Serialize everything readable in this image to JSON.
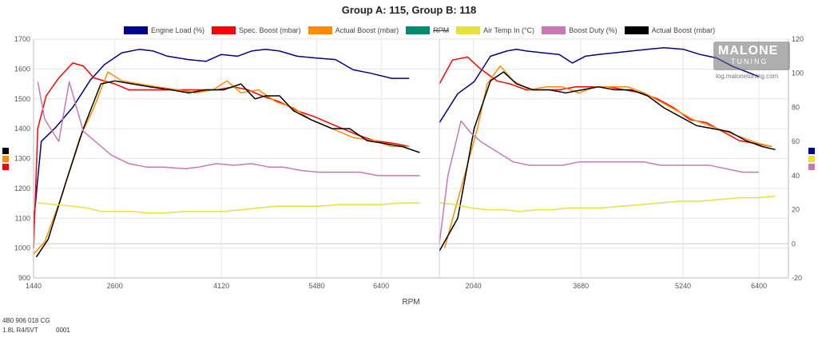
{
  "title": "Group A: 115, Group B: 118",
  "footer": {
    "line1": "4B0 906 018 CG",
    "line2": "1.8L R4/5VT",
    "line3": "0001"
  },
  "watermark": {
    "main": "MALONE",
    "sub": "TUNING",
    "url": "log.malonetuning.com"
  },
  "chart_data": {
    "type": "line",
    "title": "Group A: 115, Group B: 118",
    "xlabel": "RPM",
    "ylabel_left": "",
    "ylabel_right": "",
    "y_left_range": [
      900,
      1700
    ],
    "y_left_ticks": [
      "900",
      "1000",
      "1100",
      "1200",
      "1300",
      "1400",
      "1500",
      "1600",
      "1700"
    ],
    "y_right_range": [
      -20,
      120
    ],
    "y_right_ticks": [
      "-20",
      "0",
      "20",
      "40",
      "60",
      "80",
      "100",
      "120"
    ],
    "grid": true,
    "legend_position": "top",
    "legend": [
      {
        "name": "Engine Load (%)",
        "color": "#00008b",
        "hidden": false
      },
      {
        "name": "Spec. Boost (mbar)",
        "color": "#ff0000",
        "hidden": false
      },
      {
        "name": "Actual Boost (mbar)",
        "color": "#ff8c00",
        "hidden": false
      },
      {
        "name": "RPM",
        "color": "#008b6b",
        "hidden": true
      },
      {
        "name": "Air Temp In (°C)",
        "color": "#e8e040",
        "hidden": false
      },
      {
        "name": "Boost Duty (%)",
        "color": "#c878b4",
        "hidden": false
      },
      {
        "name": "Actual Boost (mbar)",
        "color": "#000000",
        "hidden": false
      }
    ],
    "panels": [
      {
        "name": "Group A",
        "x_range": [
          1440,
          7230
        ],
        "x_ticks": [
          "1440",
          "2600",
          "4120",
          "5480",
          "6400"
        ],
        "series": [
          {
            "name": "Engine Load (%)",
            "axis": "right",
            "color": "#00008b",
            "x": [
              1440,
              1550,
              1750,
              2000,
              2250,
              2450,
              2700,
              2950,
              3150,
              3350,
              3650,
              3900,
              4120,
              4350,
              4550,
              4750,
              4950,
              5200,
              5450,
              5750,
              6000,
              6250,
              6550,
              6800
            ],
            "y": [
              12,
              60,
              68,
              80,
              96,
              105,
              112,
              114,
              113,
              110,
              108,
              107,
              111,
              110,
              113,
              114,
              113,
              110,
              109,
              108,
              102,
              100,
              97,
              97
            ]
          },
          {
            "name": "Spec. Boost (mbar)",
            "axis": "left",
            "color": "#ff0000",
            "x": [
              1440,
              1500,
              1620,
              1800,
              2000,
              2150,
              2300,
              2450,
              2600,
              2800,
              3000,
              3250,
              3500,
              3800,
              4050,
              4300,
              4500,
              4700,
              4950,
              5200,
              5450,
              5750,
              6050,
              6300,
              6600,
              6800
            ],
            "y": [
              1000,
              1400,
              1510,
              1570,
              1620,
              1610,
              1570,
              1560,
              1550,
              1530,
              1530,
              1530,
              1530,
              1530,
              1530,
              1540,
              1530,
              1510,
              1490,
              1460,
              1440,
              1410,
              1380,
              1360,
              1350,
              1340
            ]
          },
          {
            "name": "Actual Boost (mbar)",
            "axis": "left",
            "color": "#ff8c00",
            "x": [
              1440,
              1600,
              1850,
              2100,
              2300,
              2500,
              2700,
              2950,
              3200,
              3500,
              3750,
              4000,
              4200,
              4400,
              4650,
              4900,
              5150,
              5400,
              5700,
              6000,
              6300,
              6550,
              6800
            ],
            "y": [
              980,
              1020,
              1180,
              1370,
              1470,
              1590,
              1560,
              1550,
              1540,
              1530,
              1520,
              1530,
              1560,
              1520,
              1530,
              1490,
              1470,
              1430,
              1400,
              1370,
              1360,
              1340,
              1340
            ]
          },
          {
            "name": "Actual Boost (mbar)",
            "axis": "left",
            "color": "#000000",
            "x": [
              1480,
              1650,
              1900,
              2150,
              2400,
              2600,
              2850,
              3100,
              3400,
              3650,
              3900,
              4150,
              4400,
              4600,
              4750,
              4950,
              5150,
              5400,
              5700,
              5950,
              6200,
              6450,
              6700,
              6950
            ],
            "y": [
              970,
              1030,
              1220,
              1400,
              1550,
              1560,
              1550,
              1540,
              1530,
              1520,
              1530,
              1530,
              1550,
              1500,
              1510,
              1510,
              1460,
              1430,
              1400,
              1400,
              1360,
              1350,
              1340,
              1320
            ]
          },
          {
            "name": "Air Temp In (°C)",
            "axis": "right",
            "color": "#e8e040",
            "x": [
              1500,
              1750,
              2000,
              2200,
              2400,
              2650,
              2850,
              3050,
              3300,
              3600,
              3900,
              4150,
              4400,
              4650,
              4900,
              5200,
              5500,
              5800,
              6100,
              6400,
              6700,
              6950
            ],
            "y": [
              24,
              23,
              22,
              21,
              19,
              19,
              19,
              18,
              18,
              19,
              19,
              19,
              20,
              21,
              22,
              22,
              22,
              23,
              23,
              23,
              24,
              24
            ]
          },
          {
            "name": "Boost Duty (%)",
            "axis": "right",
            "color": "#c878b4",
            "x": [
              1500,
              1600,
              1800,
              1950,
              2150,
              2350,
              2550,
              2800,
              3050,
              3300,
              3600,
              3800,
              4050,
              4300,
              4550,
              4800,
              5000,
              5250,
              5500,
              5800,
              6100,
              6350,
              6650,
              6950
            ],
            "y": [
              95,
              73,
              60,
              95,
              66,
              59,
              52,
              47,
              45,
              45,
              44,
              45,
              47,
              46,
              47,
              45,
              45,
              43,
              42,
              42,
              42,
              40,
              40,
              40
            ]
          }
        ]
      },
      {
        "name": "Group B",
        "x_range": [
          1520,
          6850
        ],
        "x_ticks": [
          "2040",
          "3680",
          "5240",
          "6400"
        ],
        "series": [
          {
            "name": "Engine Load (%)",
            "axis": "right",
            "color": "#00008b",
            "x": [
              1520,
              1800,
              2050,
              2300,
              2550,
              2700,
              2850,
              3100,
              3350,
              3550,
              3750,
              3950,
              4200,
              4450,
              4700,
              4950,
              5250,
              5500,
              5750,
              6000,
              6200,
              6400
            ],
            "y": [
              71,
              88,
              95,
              110,
              113,
              114,
              113,
              112,
              111,
              106,
              110,
              111,
              112,
              113,
              114,
              115,
              114,
              111,
              109,
              104,
              101,
              98
            ]
          },
          {
            "name": "Spec. Boost (mbar)",
            "axis": "left",
            "color": "#ff0000",
            "x": [
              1520,
              1720,
              1950,
              2150,
              2400,
              2600,
              2850,
              3100,
              3350,
              3600,
              3850,
              4100,
              4350,
              4600,
              4850,
              5100,
              5350,
              5600,
              5850,
              6100,
              6350,
              6600
            ],
            "y": [
              1550,
              1630,
              1640,
              1600,
              1560,
              1550,
              1530,
              1530,
              1530,
              1540,
              1540,
              1540,
              1530,
              1520,
              1500,
              1470,
              1430,
              1420,
              1390,
              1360,
              1350,
              1340
            ]
          },
          {
            "name": "Actual Boost (mbar)",
            "axis": "left",
            "color": "#ff8c00",
            "x": [
              1600,
              1850,
              2100,
              2250,
              2450,
              2650,
              2900,
              3150,
              3400,
              3650,
              3900,
              4150,
              4400,
              4650,
              4900,
              5150,
              5400,
              5650,
              5900,
              6150,
              6400,
              6600
            ],
            "y": [
              1000,
              1200,
              1400,
              1550,
              1610,
              1560,
              1530,
              1540,
              1540,
              1520,
              1540,
              1540,
              1540,
              1520,
              1490,
              1460,
              1430,
              1410,
              1390,
              1370,
              1350,
              1340
            ]
          },
          {
            "name": "Actual Boost (mbar)",
            "axis": "left",
            "color": "#000000",
            "x": [
              1520,
              1800,
              2050,
              2300,
              2500,
              2700,
              2950,
              3200,
              3450,
              3700,
              3950,
              4200,
              4450,
              4700,
              4950,
              5200,
              5450,
              5700,
              5950,
              6200,
              6450,
              6650
            ],
            "y": [
              990,
              1100,
              1400,
              1560,
              1590,
              1550,
              1530,
              1530,
              1520,
              1530,
              1540,
              1530,
              1530,
              1510,
              1470,
              1440,
              1410,
              1400,
              1390,
              1360,
              1340,
              1330
            ]
          },
          {
            "name": "Air Temp In (°C)",
            "axis": "right",
            "color": "#e8e040",
            "x": [
              1520,
              1750,
              2000,
              2250,
              2500,
              2750,
              3000,
              3250,
              3500,
              3750,
              4000,
              4300,
              4600,
              4900,
              5200,
              5500,
              5800,
              6100,
              6400,
              6650
            ],
            "y": [
              24,
              23,
              21,
              20,
              20,
              19,
              20,
              20,
              21,
              21,
              21,
              22,
              23,
              24,
              25,
              25,
              26,
              27,
              27,
              28
            ]
          },
          {
            "name": "Boost Duty (%)",
            "axis": "right",
            "color": "#c878b4",
            "x": [
              1520,
              1650,
              1850,
              2000,
              2150,
              2400,
              2650,
              2900,
              3150,
              3400,
              3650,
              3900,
              4150,
              4400,
              4650,
              4900,
              5150,
              5400,
              5650,
              5900,
              6150,
              6400
            ],
            "y": [
              0,
              40,
              72,
              65,
              60,
              54,
              48,
              46,
              46,
              46,
              48,
              48,
              48,
              48,
              48,
              46,
              46,
              46,
              46,
              44,
              42,
              42
            ]
          }
        ]
      }
    ]
  },
  "side_markers": {
    "left": [
      "#000000",
      "#ff8c00",
      "#ff0000"
    ],
    "right": [
      "#00008b",
      "#e8e040",
      "#c878b4"
    ]
  }
}
